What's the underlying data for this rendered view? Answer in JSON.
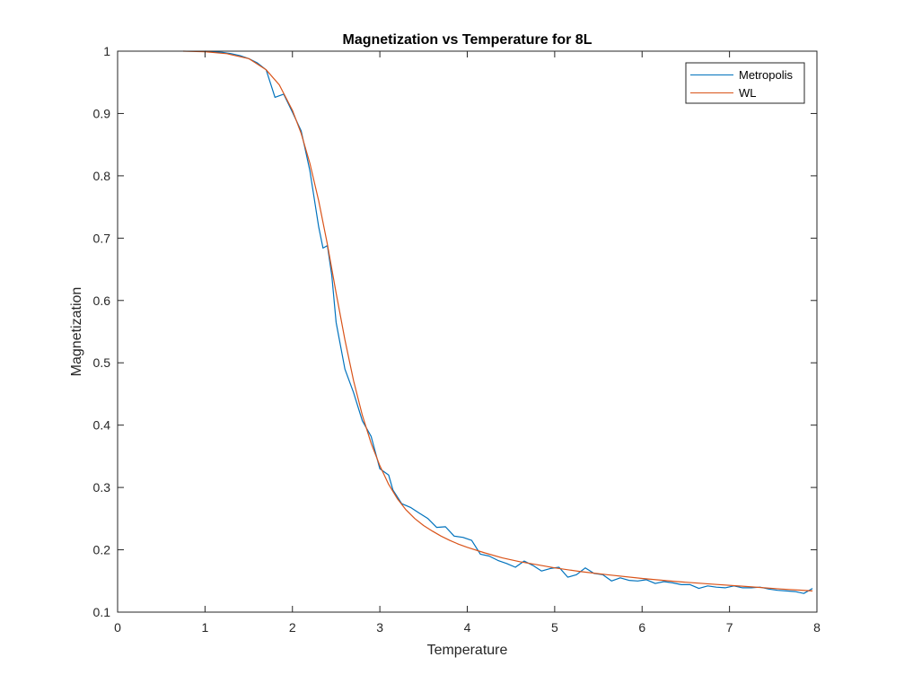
{
  "chart_data": {
    "type": "line",
    "title": "Magnetization vs Temperature for 8L",
    "xlabel": "Temperature",
    "ylabel": "Magnetization",
    "xlim": [
      0,
      8
    ],
    "ylim": [
      0.1,
      1
    ],
    "xticks": [
      0,
      1,
      2,
      3,
      4,
      5,
      6,
      7,
      8
    ],
    "yticks": [
      0.1,
      0.2,
      0.3,
      0.4,
      0.5,
      0.6,
      0.7,
      0.8,
      0.9,
      1
    ],
    "xtick_labels": [
      "0",
      "1",
      "2",
      "3",
      "4",
      "5",
      "6",
      "7",
      "8"
    ],
    "ytick_labels": [
      "0.1",
      "0.2",
      "0.3",
      "0.4",
      "0.5",
      "0.6",
      "0.7",
      "0.8",
      "0.9",
      "1"
    ],
    "grid": false,
    "legend_position": "top-right",
    "series": [
      {
        "name": "Metropolis",
        "color": "#0072BD",
        "x": [
          1.0,
          1.1,
          1.2,
          1.3,
          1.4,
          1.5,
          1.6,
          1.7,
          1.8,
          1.9,
          2.0,
          2.1,
          2.2,
          2.3,
          2.35,
          2.4,
          2.45,
          2.5,
          2.6,
          2.7,
          2.8,
          2.9,
          3.0,
          3.1,
          3.15,
          3.25,
          3.35,
          3.45,
          3.55,
          3.65,
          3.75,
          3.85,
          3.95,
          4.05,
          4.15,
          4.25,
          4.35,
          4.45,
          4.55,
          4.65,
          4.75,
          4.85,
          4.95,
          5.05,
          5.15,
          5.25,
          5.35,
          5.45,
          5.55,
          5.65,
          5.75,
          5.85,
          5.95,
          6.05,
          6.15,
          6.25,
          6.35,
          6.45,
          6.55,
          6.65,
          6.75,
          6.85,
          6.95,
          7.05,
          7.15,
          7.25,
          7.35,
          7.45,
          7.55,
          7.65,
          7.75,
          7.85,
          7.95
        ],
        "values": [
          1.0,
          0.999,
          0.998,
          0.996,
          0.993,
          0.988,
          0.981,
          0.97,
          0.926,
          0.931,
          0.902,
          0.872,
          0.808,
          0.718,
          0.684,
          0.688,
          0.64,
          0.565,
          0.49,
          0.452,
          0.407,
          0.382,
          0.33,
          0.32,
          0.296,
          0.274,
          0.268,
          0.259,
          0.25,
          0.236,
          0.237,
          0.222,
          0.22,
          0.215,
          0.193,
          0.19,
          0.183,
          0.178,
          0.172,
          0.182,
          0.175,
          0.166,
          0.17,
          0.172,
          0.156,
          0.16,
          0.171,
          0.162,
          0.16,
          0.15,
          0.155,
          0.151,
          0.15,
          0.152,
          0.146,
          0.149,
          0.147,
          0.144,
          0.144,
          0.138,
          0.142,
          0.14,
          0.139,
          0.142,
          0.139,
          0.139,
          0.14,
          0.137,
          0.135,
          0.134,
          0.133,
          0.13,
          0.138
        ]
      },
      {
        "name": "WL",
        "color": "#D95319",
        "x": [
          0.75,
          1.0,
          1.25,
          1.5,
          1.7,
          1.85,
          2.0,
          2.1,
          2.2,
          2.3,
          2.4,
          2.5,
          2.6,
          2.7,
          2.8,
          2.9,
          3.0,
          3.1,
          3.2,
          3.3,
          3.4,
          3.5,
          3.6,
          3.7,
          3.8,
          3.9,
          4.0,
          4.2,
          4.4,
          4.6,
          4.8,
          5.0,
          5.3,
          5.6,
          6.0,
          6.4,
          6.8,
          7.2,
          7.6,
          7.95
        ],
        "values": [
          1.0,
          0.999,
          0.996,
          0.988,
          0.97,
          0.946,
          0.905,
          0.868,
          0.82,
          0.76,
          0.69,
          0.612,
          0.537,
          0.471,
          0.416,
          0.371,
          0.335,
          0.305,
          0.282,
          0.264,
          0.25,
          0.239,
          0.23,
          0.222,
          0.215,
          0.209,
          0.204,
          0.195,
          0.187,
          0.181,
          0.176,
          0.171,
          0.165,
          0.16,
          0.154,
          0.149,
          0.145,
          0.141,
          0.137,
          0.134
        ]
      }
    ]
  }
}
